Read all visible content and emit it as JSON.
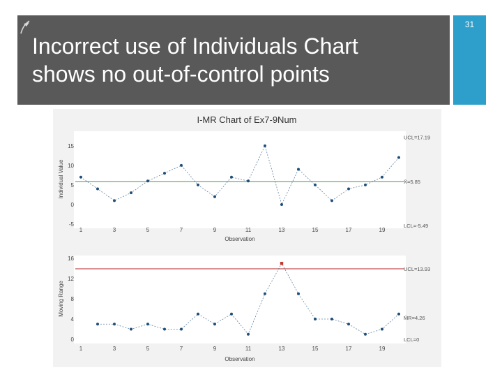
{
  "slide": {
    "number": "31",
    "title_lines": [
      "Incorrect use of Individuals Chart",
      "shows no out-of-control points"
    ],
    "colors": {
      "title_bar": "#595959",
      "accent": "#2e9fca",
      "title_text": "#ffffff"
    },
    "icons": {
      "corner": "plus-icon"
    }
  },
  "chart_data": [
    {
      "type": "line",
      "title": "I-MR Chart of Ex7-9Num",
      "xlabel": "Observation",
      "ylabel": "Individual Value",
      "x": [
        1,
        2,
        3,
        4,
        5,
        6,
        7,
        8,
        9,
        10,
        11,
        12,
        13,
        14,
        15,
        16,
        17,
        18,
        19,
        20
      ],
      "series": [
        {
          "values": [
            7,
            4,
            1,
            3,
            6,
            8,
            10,
            5,
            2,
            7,
            6,
            15,
            0,
            9,
            5,
            1,
            4,
            5,
            7,
            12
          ],
          "color": "#1f4e79"
        }
      ],
      "ylim": [
        -5,
        18
      ],
      "yticks": [
        -5,
        0,
        5,
        10,
        15
      ],
      "xticks": [
        1,
        3,
        5,
        7,
        9,
        11,
        13,
        15,
        17,
        19
      ],
      "center_line": {
        "value": 5.85,
        "label": "X̄=5.85",
        "color": "#3a9a3a"
      },
      "ucl": {
        "value": 17.19,
        "label": "UCL=17.19"
      },
      "lcl": {
        "value": -5.49,
        "label": "LCL=-5.49"
      },
      "grid": false
    },
    {
      "type": "line",
      "title": "",
      "xlabel": "Observation",
      "ylabel": "Moving Range",
      "x": [
        2,
        3,
        4,
        5,
        6,
        7,
        8,
        9,
        10,
        11,
        12,
        13,
        14,
        15,
        16,
        17,
        18,
        19,
        20
      ],
      "series": [
        {
          "values": [
            3,
            3,
            2,
            3,
            2,
            2,
            5,
            3,
            5,
            1,
            9,
            15,
            9,
            4,
            4,
            3,
            1,
            2,
            5
          ],
          "color": "#1f4e79"
        }
      ],
      "ylim": [
        0,
        16
      ],
      "yticks": [
        0,
        4,
        8,
        12,
        16
      ],
      "xticks": [
        1,
        3,
        5,
        7,
        9,
        11,
        13,
        15,
        17,
        19
      ],
      "out_of_control": [
        {
          "x": 13,
          "value": 15,
          "color": "#c0392b"
        }
      ],
      "ucl": {
        "value": 13.93,
        "label": "UCL=13.93",
        "color": "#b22222"
      },
      "center_line": {
        "value": 4.26,
        "label": "M̄R=4.26"
      },
      "lcl": {
        "value": 0,
        "label": "LCL=0"
      },
      "grid": false
    }
  ]
}
